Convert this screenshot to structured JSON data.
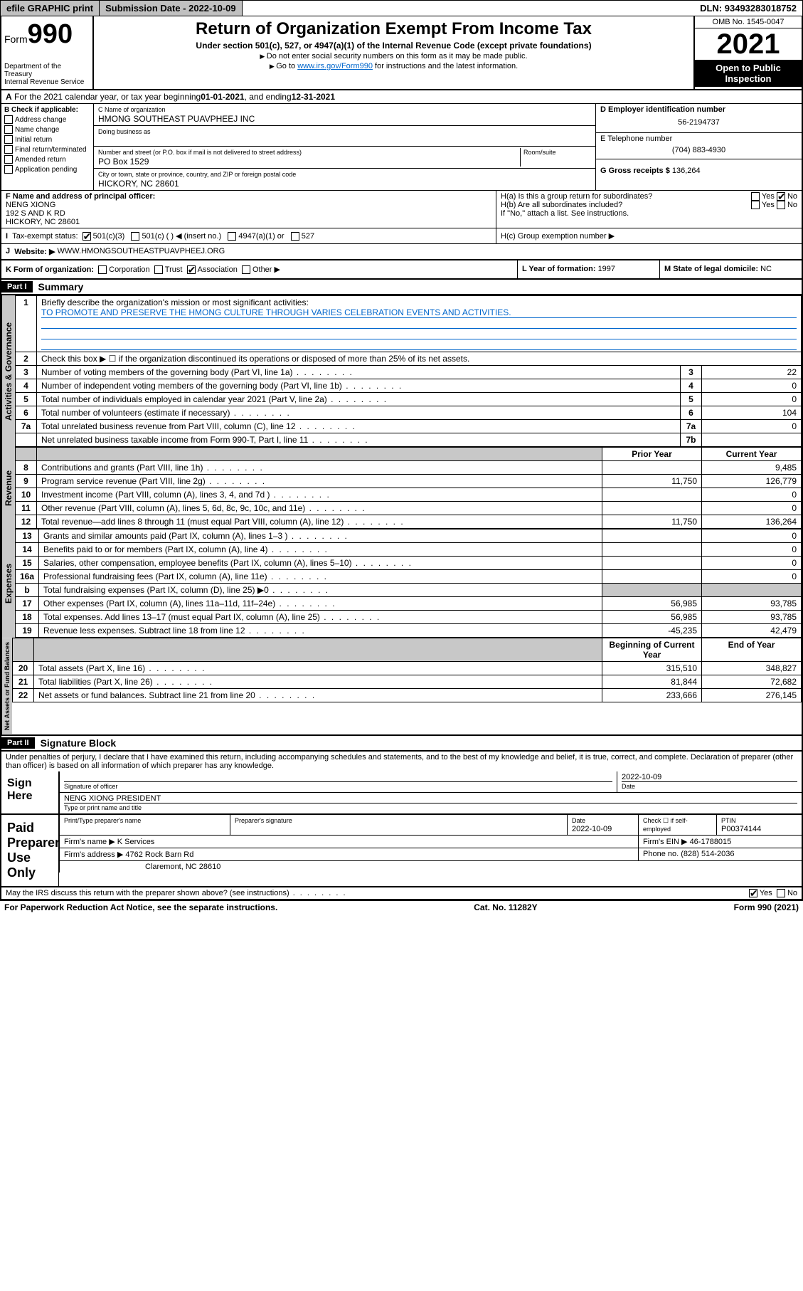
{
  "topbar": {
    "efile": "efile GRAPHIC print",
    "submission_label": "Submission Date - ",
    "submission_date": "2022-10-09",
    "dln_label": "DLN: ",
    "dln": "93493283018752"
  },
  "header": {
    "form_label": "Form",
    "form_num": "990",
    "title": "Return of Organization Exempt From Income Tax",
    "subtitle": "Under section 501(c), 527, or 4947(a)(1) of the Internal Revenue Code (except private foundations)",
    "note1": "Do not enter social security numbers on this form as it may be made public.",
    "note2_pre": "Go to ",
    "note2_link": "www.irs.gov/Form990",
    "note2_post": " for instructions and the latest information.",
    "dept": "Department of the Treasury\nInternal Revenue Service",
    "omb": "OMB No. 1545-0047",
    "year": "2021",
    "open": "Open to Public Inspection"
  },
  "lineA": {
    "text_pre": "For the 2021 calendar year, or tax year beginning ",
    "begin": "01-01-2021",
    "text_mid": " , and ending ",
    "end": "12-31-2021"
  },
  "boxB": {
    "label": "B Check if applicable:",
    "items": [
      "Address change",
      "Name change",
      "Initial return",
      "Final return/terminated",
      "Amended return",
      "Application pending"
    ]
  },
  "boxC": {
    "name_label": "C Name of organization",
    "name": "HMONG SOUTHEAST PUAVPHEEJ INC",
    "dba_label": "Doing business as",
    "dba": "",
    "addr_label": "Number and street (or P.O. box if mail is not delivered to street address)",
    "room_label": "Room/suite",
    "addr": "PO Box 1529",
    "city_label": "City or town, state or province, country, and ZIP or foreign postal code",
    "city": "HICKORY, NC  28601"
  },
  "boxD": {
    "label": "D Employer identification number",
    "val": "56-2194737"
  },
  "boxE": {
    "label": "E Telephone number",
    "val": "(704) 883-4930"
  },
  "boxG": {
    "label": "G Gross receipts $ ",
    "val": "136,264"
  },
  "boxF": {
    "label": "F Name and address of principal officer:",
    "name": "NENG XIONG",
    "addr1": "192 S AND K RD",
    "addr2": "HICKORY, NC  28601"
  },
  "boxH": {
    "a": "H(a)  Is this a group return for subordinates?",
    "b": "H(b)  Are all subordinates included?",
    "b_note": "If \"No,\" attach a list. See instructions.",
    "c": "H(c)  Group exemption number ▶"
  },
  "taxexempt": {
    "label": "Tax-exempt status:",
    "opts": [
      "501(c)(3)",
      "501(c) (  ) ◀ (insert no.)",
      "4947(a)(1) or",
      "527"
    ]
  },
  "boxJ": {
    "label": "Website: ▶",
    "val": "WWW.HMONGSOUTHEASTPUAVPHEEJ.ORG"
  },
  "boxK": {
    "label": "K Form of organization:",
    "opts": [
      "Corporation",
      "Trust",
      "Association",
      "Other ▶"
    ]
  },
  "boxL": {
    "label": "L Year of formation: ",
    "val": "1997"
  },
  "boxM": {
    "label": "M State of legal domicile: ",
    "val": "NC"
  },
  "part1": {
    "num": "Part I",
    "title": "Summary"
  },
  "summary": {
    "l1_label": "Briefly describe the organization's mission or most significant activities:",
    "l1_text": "TO PROMOTE AND PRESERVE THE HMONG CULTURE THROUGH VARIES CELEBRATION EVENTS AND ACTIVITIES.",
    "l2": "Check this box ▶ ☐  if the organization discontinued its operations or disposed of more than 25% of its net assets.",
    "rows_gov": [
      {
        "n": "3",
        "t": "Number of voting members of the governing body (Part VI, line 1a)",
        "rn": "3",
        "v": "22"
      },
      {
        "n": "4",
        "t": "Number of independent voting members of the governing body (Part VI, line 1b)",
        "rn": "4",
        "v": "0"
      },
      {
        "n": "5",
        "t": "Total number of individuals employed in calendar year 2021 (Part V, line 2a)",
        "rn": "5",
        "v": "0"
      },
      {
        "n": "6",
        "t": "Total number of volunteers (estimate if necessary)",
        "rn": "6",
        "v": "104"
      },
      {
        "n": "7a",
        "t": "Total unrelated business revenue from Part VIII, column (C), line 12",
        "rn": "7a",
        "v": "0"
      },
      {
        "n": "",
        "t": "Net unrelated business taxable income from Form 990-T, Part I, line 11",
        "rn": "7b",
        "v": ""
      }
    ],
    "col_prior": "Prior Year",
    "col_current": "Current Year",
    "rows_rev": [
      {
        "n": "8",
        "t": "Contributions and grants (Part VIII, line 1h)",
        "p": "",
        "c": "9,485"
      },
      {
        "n": "9",
        "t": "Program service revenue (Part VIII, line 2g)",
        "p": "11,750",
        "c": "126,779"
      },
      {
        "n": "10",
        "t": "Investment income (Part VIII, column (A), lines 3, 4, and 7d )",
        "p": "",
        "c": "0"
      },
      {
        "n": "11",
        "t": "Other revenue (Part VIII, column (A), lines 5, 6d, 8c, 9c, 10c, and 11e)",
        "p": "",
        "c": "0"
      },
      {
        "n": "12",
        "t": "Total revenue—add lines 8 through 11 (must equal Part VIII, column (A), line 12)",
        "p": "11,750",
        "c": "136,264"
      }
    ],
    "rows_exp": [
      {
        "n": "13",
        "t": "Grants and similar amounts paid (Part IX, column (A), lines 1–3 )",
        "p": "",
        "c": "0"
      },
      {
        "n": "14",
        "t": "Benefits paid to or for members (Part IX, column (A), line 4)",
        "p": "",
        "c": "0"
      },
      {
        "n": "15",
        "t": "Salaries, other compensation, employee benefits (Part IX, column (A), lines 5–10)",
        "p": "",
        "c": "0"
      },
      {
        "n": "16a",
        "t": "Professional fundraising fees (Part IX, column (A), line 11e)",
        "p": "",
        "c": "0"
      },
      {
        "n": "b",
        "t": "Total fundraising expenses (Part IX, column (D), line 25) ▶0",
        "p": "shade",
        "c": "shade"
      },
      {
        "n": "17",
        "t": "Other expenses (Part IX, column (A), lines 11a–11d, 11f–24e)",
        "p": "56,985",
        "c": "93,785"
      },
      {
        "n": "18",
        "t": "Total expenses. Add lines 13–17 (must equal Part IX, column (A), line 25)",
        "p": "56,985",
        "c": "93,785"
      },
      {
        "n": "19",
        "t": "Revenue less expenses. Subtract line 18 from line 12",
        "p": "-45,235",
        "c": "42,479"
      }
    ],
    "col_begin": "Beginning of Current Year",
    "col_end": "End of Year",
    "rows_net": [
      {
        "n": "20",
        "t": "Total assets (Part X, line 16)",
        "p": "315,510",
        "c": "348,827"
      },
      {
        "n": "21",
        "t": "Total liabilities (Part X, line 26)",
        "p": "81,844",
        "c": "72,682"
      },
      {
        "n": "22",
        "t": "Net assets or fund balances. Subtract line 21 from line 20",
        "p": "233,666",
        "c": "276,145"
      }
    ]
  },
  "vtabs": {
    "gov": "Activities & Governance",
    "rev": "Revenue",
    "exp": "Expenses",
    "net": "Net Assets or Fund Balances"
  },
  "part2": {
    "num": "Part II",
    "title": "Signature Block"
  },
  "penalty": "Under penalties of perjury, I declare that I have examined this return, including accompanying schedules and statements, and to the best of my knowledge and belief, it is true, correct, and complete. Declaration of preparer (other than officer) is based on all information of which preparer has any knowledge.",
  "sign": {
    "here": "Sign Here",
    "sig_officer": "Signature of officer",
    "date_label": "Date",
    "date": "2022-10-09",
    "name_title": "NENG XIONG PRESIDENT",
    "type_label": "Type or print name and title"
  },
  "paid": {
    "title": "Paid Preparer Use Only",
    "h1": "Print/Type preparer's name",
    "h2": "Preparer's signature",
    "h3": "Date",
    "h3v": "2022-10-09",
    "h4": "Check ☐ if self-employed",
    "h5": "PTIN",
    "h5v": "P00374144",
    "firm_name_l": "Firm's name    ▶ ",
    "firm_name": "K Services",
    "firm_ein_l": "Firm's EIN ▶ ",
    "firm_ein": "46-1788015",
    "firm_addr_l": "Firm's address ▶ ",
    "firm_addr": "4762 Rock Barn Rd",
    "firm_city": "Claremont, NC  28610",
    "phone_l": "Phone no. ",
    "phone": "(828) 514-2036"
  },
  "discuss": "May the IRS discuss this return with the preparer shown above? (see instructions)",
  "footer": {
    "l": "For Paperwork Reduction Act Notice, see the separate instructions.",
    "m": "Cat. No. 11282Y",
    "r": "Form 990 (2021)"
  },
  "yesno": {
    "yes": "Yes",
    "no": "No"
  }
}
